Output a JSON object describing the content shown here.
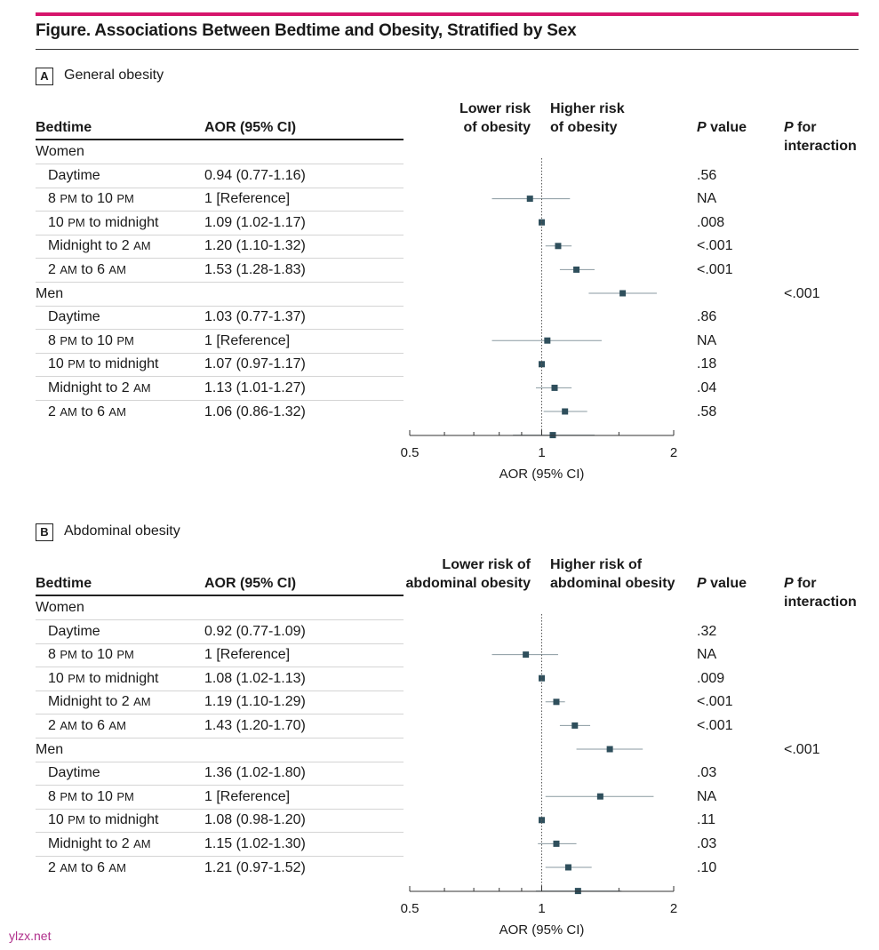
{
  "figure": {
    "title": "Figure. Associations Between Bedtime and Obesity, Stratified by Sex",
    "accent_color": "#d6156c",
    "marker_color": "#2f4f5c",
    "watermark": "ylzx.net"
  },
  "headers": {
    "bedtime": "Bedtime",
    "aor": "AOR (95% CI)",
    "p_value": "P value",
    "p_interaction_line1": "P for",
    "p_interaction_line2": "interaction"
  },
  "chart_data": [
    {
      "type": "forest",
      "panel_letter": "A",
      "title": "General obesity",
      "lower_label_1": "Lower risk",
      "lower_label_2": "of obesity",
      "higher_label_1": "Higher risk",
      "higher_label_2": "of obesity",
      "xlabel": "AOR (95% CI)",
      "xscale": "log",
      "xlim": [
        0.5,
        2
      ],
      "ticks": [
        "0.5",
        "1",
        "2"
      ],
      "reference_line": 1,
      "groups": [
        {
          "name": "Women",
          "p_interaction": "",
          "rows": [
            {
              "label": "Daytime",
              "aor_text": "0.94 (0.77-1.16)",
              "est": 0.94,
              "lo": 0.77,
              "hi": 1.16,
              "p": ".56"
            },
            {
              "label": "8 PM to 10 PM",
              "aor_text": "1 [Reference]",
              "est": 1,
              "lo": 1,
              "hi": 1,
              "p": "NA"
            },
            {
              "label": "10 PM to midnight",
              "aor_text": "1.09 (1.02-1.17)",
              "est": 1.09,
              "lo": 1.02,
              "hi": 1.17,
              "p": ".008"
            },
            {
              "label": "Midnight to 2 AM",
              "aor_text": "1.20 (1.10-1.32)",
              "est": 1.2,
              "lo": 1.1,
              "hi": 1.32,
              "p": "<.001"
            },
            {
              "label": "2 AM to 6 AM",
              "aor_text": "1.53 (1.28-1.83)",
              "est": 1.53,
              "lo": 1.28,
              "hi": 1.83,
              "p": "<.001"
            }
          ]
        },
        {
          "name": "Men",
          "p_interaction": "<.001",
          "rows": [
            {
              "label": "Daytime",
              "aor_text": "1.03 (0.77-1.37)",
              "est": 1.03,
              "lo": 0.77,
              "hi": 1.37,
              "p": ".86"
            },
            {
              "label": "8 PM to 10 PM",
              "aor_text": "1 [Reference]",
              "est": 1,
              "lo": 1,
              "hi": 1,
              "p": "NA"
            },
            {
              "label": "10 PM to midnight",
              "aor_text": "1.07 (0.97-1.17)",
              "est": 1.07,
              "lo": 0.97,
              "hi": 1.17,
              "p": ".18"
            },
            {
              "label": "Midnight to 2 AM",
              "aor_text": "1.13 (1.01-1.27)",
              "est": 1.13,
              "lo": 1.01,
              "hi": 1.27,
              "p": ".04"
            },
            {
              "label": "2 AM to 6 AM",
              "aor_text": "1.06 (0.86-1.32)",
              "est": 1.06,
              "lo": 0.86,
              "hi": 1.32,
              "p": ".58"
            }
          ]
        }
      ]
    },
    {
      "type": "forest",
      "panel_letter": "B",
      "title": "Abdominal obesity",
      "lower_label_1": "Lower risk of",
      "lower_label_2": "abdominal obesity",
      "higher_label_1": "Higher risk of",
      "higher_label_2": "abdominal obesity",
      "xlabel": "AOR (95% CI)",
      "xscale": "log",
      "xlim": [
        0.5,
        2
      ],
      "ticks": [
        "0.5",
        "1",
        "2"
      ],
      "reference_line": 1,
      "groups": [
        {
          "name": "Women",
          "p_interaction": "",
          "rows": [
            {
              "label": "Daytime",
              "aor_text": "0.92 (0.77-1.09)",
              "est": 0.92,
              "lo": 0.77,
              "hi": 1.09,
              "p": ".32"
            },
            {
              "label": "8 PM to 10 PM",
              "aor_text": "1 [Reference]",
              "est": 1,
              "lo": 1,
              "hi": 1,
              "p": "NA"
            },
            {
              "label": "10 PM to midnight",
              "aor_text": "1.08 (1.02-1.13)",
              "est": 1.08,
              "lo": 1.02,
              "hi": 1.13,
              "p": ".009"
            },
            {
              "label": "Midnight to 2 AM",
              "aor_text": "1.19 (1.10-1.29)",
              "est": 1.19,
              "lo": 1.1,
              "hi": 1.29,
              "p": "<.001"
            },
            {
              "label": "2 AM to 6 AM",
              "aor_text": "1.43 (1.20-1.70)",
              "est": 1.43,
              "lo": 1.2,
              "hi": 1.7,
              "p": "<.001"
            }
          ]
        },
        {
          "name": "Men",
          "p_interaction": "<.001",
          "rows": [
            {
              "label": "Daytime",
              "aor_text": "1.36 (1.02-1.80)",
              "est": 1.36,
              "lo": 1.02,
              "hi": 1.8,
              "p": ".03"
            },
            {
              "label": "8 PM to 10 PM",
              "aor_text": "1 [Reference]",
              "est": 1,
              "lo": 1,
              "hi": 1,
              "p": "NA"
            },
            {
              "label": "10 PM to midnight",
              "aor_text": "1.08 (0.98-1.20)",
              "est": 1.08,
              "lo": 0.98,
              "hi": 1.2,
              "p": ".11"
            },
            {
              "label": "Midnight to 2 AM",
              "aor_text": "1.15 (1.02-1.30)",
              "est": 1.15,
              "lo": 1.02,
              "hi": 1.3,
              "p": ".03"
            },
            {
              "label": "2 AM to 6 AM",
              "aor_text": "1.21 (0.97-1.52)",
              "est": 1.21,
              "lo": 0.97,
              "hi": 1.52,
              "p": ".10"
            }
          ]
        }
      ]
    }
  ]
}
